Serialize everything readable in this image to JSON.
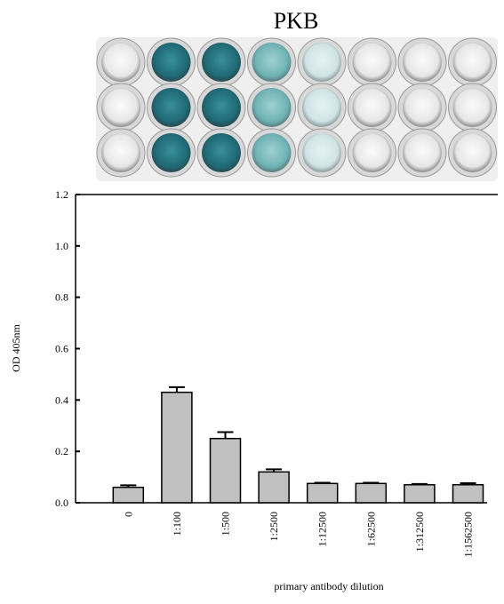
{
  "chart_data": {
    "type": "bar",
    "title": "PKB",
    "x_label": "primary antibody dilution",
    "y_label": "OD 405nm",
    "categories": [
      "0",
      "1:100",
      "1:500",
      "1:2500",
      "1:12500",
      "1:62500",
      "1:312500",
      "1:1562500"
    ],
    "values": [
      0.06,
      0.43,
      0.25,
      0.12,
      0.075,
      0.075,
      0.07,
      0.07
    ],
    "errors": [
      0.008,
      0.02,
      0.025,
      0.01,
      0.003,
      0.003,
      0.003,
      0.006
    ],
    "color": "#c0c0c0",
    "ylim": [
      0,
      1.2
    ],
    "yticks": [
      {
        "value": 0,
        "label": "0.0"
      },
      0.2,
      0.4,
      0.6,
      0.8,
      {
        "value": 1,
        "label": "1.0"
      },
      1.2
    ]
  }
}
